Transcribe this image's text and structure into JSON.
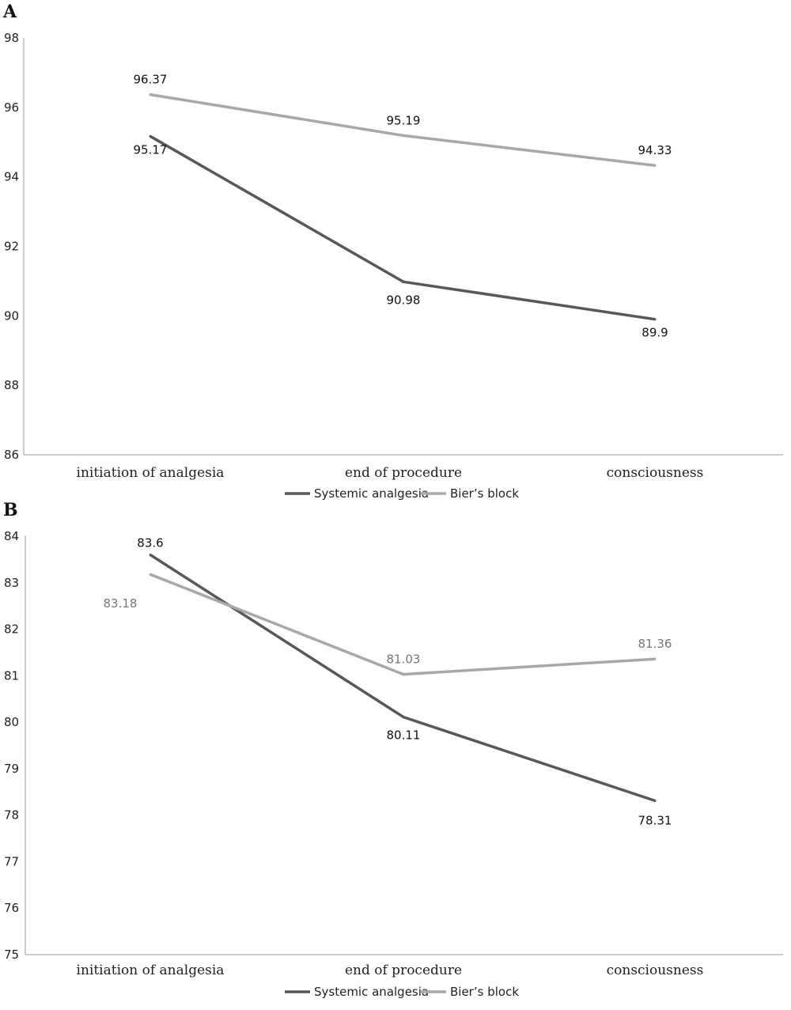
{
  "chart_data": [
    {
      "type": "line",
      "panel": "A",
      "categories": [
        "initiation of analgesia",
        "end of procedure",
        "consciousness"
      ],
      "ylim": [
        86,
        98
      ],
      "yticks": [
        "86",
        "88",
        "90",
        "92",
        "94",
        "96",
        "98"
      ],
      "series": [
        {
          "name": "Systemic analgesia",
          "color": "#585858",
          "values": [
            95.17,
            90.98,
            89.9
          ],
          "labels": [
            "95.17",
            "90.98",
            "89.9"
          ]
        },
        {
          "name": "Bier’s block",
          "color": "#a8a8a8",
          "values": [
            96.37,
            95.19,
            94.33
          ],
          "labels": [
            "96.37",
            "95.19",
            "94.33"
          ]
        }
      ],
      "grid": false,
      "legend": "bottom-center"
    },
    {
      "type": "line",
      "panel": "B",
      "categories": [
        "initiation of analgesia",
        "end of procedure",
        "consciousness"
      ],
      "ylim": [
        75,
        84
      ],
      "yticks": [
        "75",
        "76",
        "77",
        "78",
        "79",
        "80",
        "81",
        "82",
        "83",
        "84"
      ],
      "series": [
        {
          "name": "Systemic analgesia",
          "color": "#585858",
          "values": [
            83.6,
            80.11,
            78.31
          ],
          "labels": [
            "83.6",
            "80.11",
            "78.31"
          ]
        },
        {
          "name": "Bier’s block",
          "color": "#a8a8a8",
          "values": [
            83.18,
            81.03,
            81.36
          ],
          "labels": [
            "83.18",
            "81.03",
            "81.36"
          ]
        }
      ],
      "grid": false,
      "legend": "bottom-center"
    }
  ]
}
